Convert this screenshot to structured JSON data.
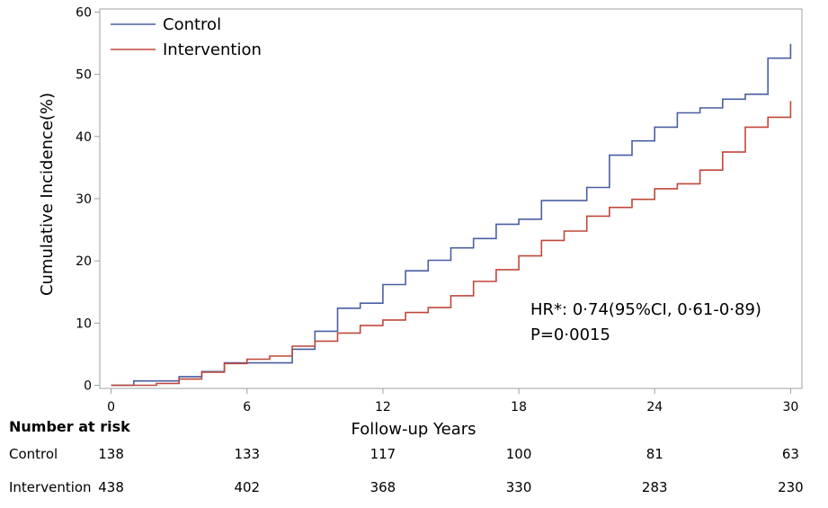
{
  "chart_data": {
    "type": "line",
    "step": true,
    "xlabel": "Follow-up Years",
    "ylabel": "Cumulative Incidence(%)",
    "xlim": [
      -0.5,
      30.5
    ],
    "ylim": [
      -0.5,
      60.5
    ],
    "x_ticks": [
      0,
      6,
      12,
      18,
      24,
      30
    ],
    "y_ticks": [
      0,
      10,
      20,
      30,
      40,
      50,
      60
    ],
    "legend_position": "top-left",
    "grid": false,
    "annotations": [
      "HR*: 0·74(95%CI, 0·61-0·89)",
      "P=0·0015"
    ],
    "series": [
      {
        "name": "Control",
        "color": "#4a5fa3",
        "points": [
          [
            0,
            0
          ],
          [
            1,
            0.7
          ],
          [
            3,
            1.4
          ],
          [
            4,
            2.2
          ],
          [
            5,
            3.6
          ],
          [
            7,
            3.6
          ],
          [
            8,
            5.8
          ],
          [
            9,
            8.7
          ],
          [
            10,
            12.4
          ],
          [
            11,
            13.2
          ],
          [
            12,
            16.2
          ],
          [
            13,
            18.4
          ],
          [
            14,
            20.1
          ],
          [
            15,
            22.1
          ],
          [
            16,
            23.6
          ],
          [
            17,
            25.9
          ],
          [
            18,
            26.7
          ],
          [
            19,
            29.7
          ],
          [
            21,
            31.8
          ],
          [
            22,
            37.0
          ],
          [
            23,
            39.3
          ],
          [
            24,
            41.5
          ],
          [
            25,
            43.8
          ],
          [
            26,
            44.6
          ],
          [
            27,
            46.0
          ],
          [
            28,
            46.8
          ],
          [
            29,
            52.6
          ],
          [
            30,
            54.9
          ]
        ]
      },
      {
        "name": "Intervention",
        "color": "#c0473a",
        "points": [
          [
            0,
            0
          ],
          [
            2,
            0.3
          ],
          [
            3,
            1.0
          ],
          [
            4,
            2.1
          ],
          [
            5,
            3.5
          ],
          [
            6,
            4.2
          ],
          [
            7,
            4.7
          ],
          [
            8,
            6.3
          ],
          [
            9,
            7.1
          ],
          [
            10,
            8.4
          ],
          [
            11,
            9.6
          ],
          [
            12,
            10.5
          ],
          [
            13,
            11.7
          ],
          [
            14,
            12.5
          ],
          [
            15,
            14.4
          ],
          [
            16,
            16.7
          ],
          [
            17,
            18.6
          ],
          [
            18,
            20.8
          ],
          [
            19,
            23.3
          ],
          [
            20,
            24.8
          ],
          [
            21,
            27.2
          ],
          [
            22,
            28.6
          ],
          [
            23,
            29.9
          ],
          [
            24,
            31.6
          ],
          [
            25,
            32.4
          ],
          [
            26,
            34.6
          ],
          [
            27,
            37.5
          ],
          [
            28,
            41.5
          ],
          [
            29,
            43.1
          ],
          [
            30,
            45.7
          ]
        ]
      }
    ]
  },
  "risk_table": {
    "title": "Number at  risk",
    "times": [
      0,
      6,
      12,
      18,
      24,
      30
    ],
    "rows": [
      {
        "label": "Control",
        "values": [
          "138",
          "133",
          "117",
          "100",
          "81",
          "63"
        ]
      },
      {
        "label": "Intervention",
        "values": [
          "438",
          "402",
          "368",
          "330",
          "283",
          "230"
        ]
      }
    ]
  }
}
